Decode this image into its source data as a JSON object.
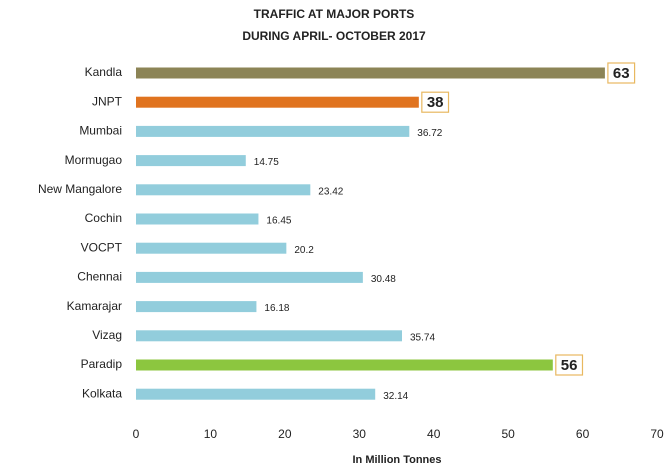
{
  "chart_data": {
    "type": "bar",
    "orientation": "horizontal",
    "title": [
      "TRAFFIC AT MAJOR PORTS",
      "DURING APRIL- OCTOBER 2017"
    ],
    "x_label": "In Million Tonnes",
    "categories": [
      "Kandla",
      "JNPT",
      "Mumbai",
      "Mormugao",
      "New Mangalore",
      "Cochin",
      "VOCPT",
      "Chennai",
      "Kamarajar",
      "Vizag",
      "Paradip",
      "Kolkata"
    ],
    "values": [
      63,
      38,
      36.72,
      14.75,
      23.42,
      16.45,
      20.2,
      30.48,
      16.18,
      35.74,
      56,
      32.14
    ],
    "colors": [
      "#8c8456",
      "#e0731f",
      "#92cddc",
      "#92cddc",
      "#92cddc",
      "#92cddc",
      "#92cddc",
      "#92cddc",
      "#92cddc",
      "#92cddc",
      "#8cc63f",
      "#92cddc"
    ],
    "xlim": [
      0,
      70
    ],
    "xticks": [
      0,
      10,
      20,
      30,
      40,
      50,
      60,
      70
    ],
    "grid": false
  }
}
